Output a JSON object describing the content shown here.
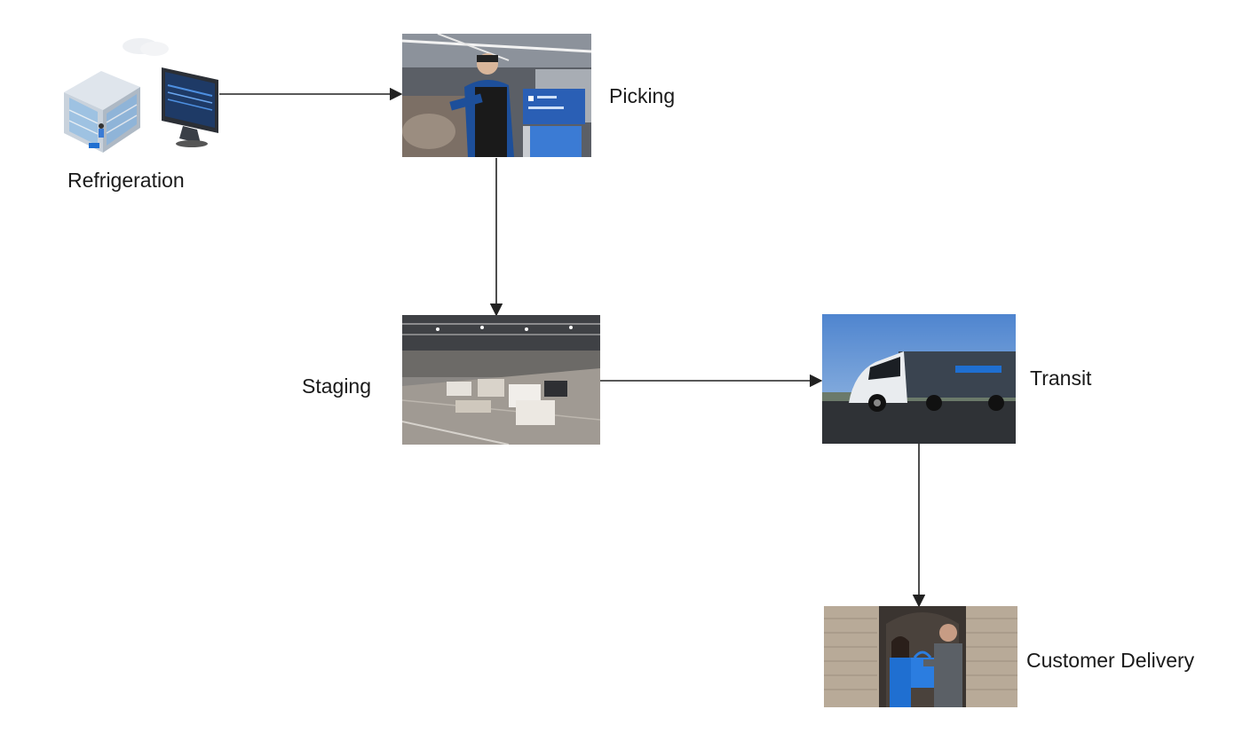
{
  "diagram": {
    "nodes": [
      {
        "id": "refrigeration",
        "label": "Refrigeration",
        "icon": "refrigeration-monitor-icon"
      },
      {
        "id": "picking",
        "label": "Picking",
        "icon": "store-picking-photo"
      },
      {
        "id": "staging",
        "label": "Staging",
        "icon": "warehouse-staging-photo"
      },
      {
        "id": "transit",
        "label": "Transit",
        "icon": "truck-transit-photo"
      },
      {
        "id": "delivery",
        "label": "Customer Delivery",
        "icon": "doorstep-delivery-photo"
      }
    ],
    "edges": [
      {
        "from": "refrigeration",
        "to": "picking"
      },
      {
        "from": "picking",
        "to": "staging"
      },
      {
        "from": "staging",
        "to": "transit"
      },
      {
        "from": "transit",
        "to": "delivery"
      }
    ],
    "colors": {
      "arrow": "#222222",
      "brand_blue": "#1f6fd1",
      "truck_sky": "#5d8fd0"
    }
  }
}
